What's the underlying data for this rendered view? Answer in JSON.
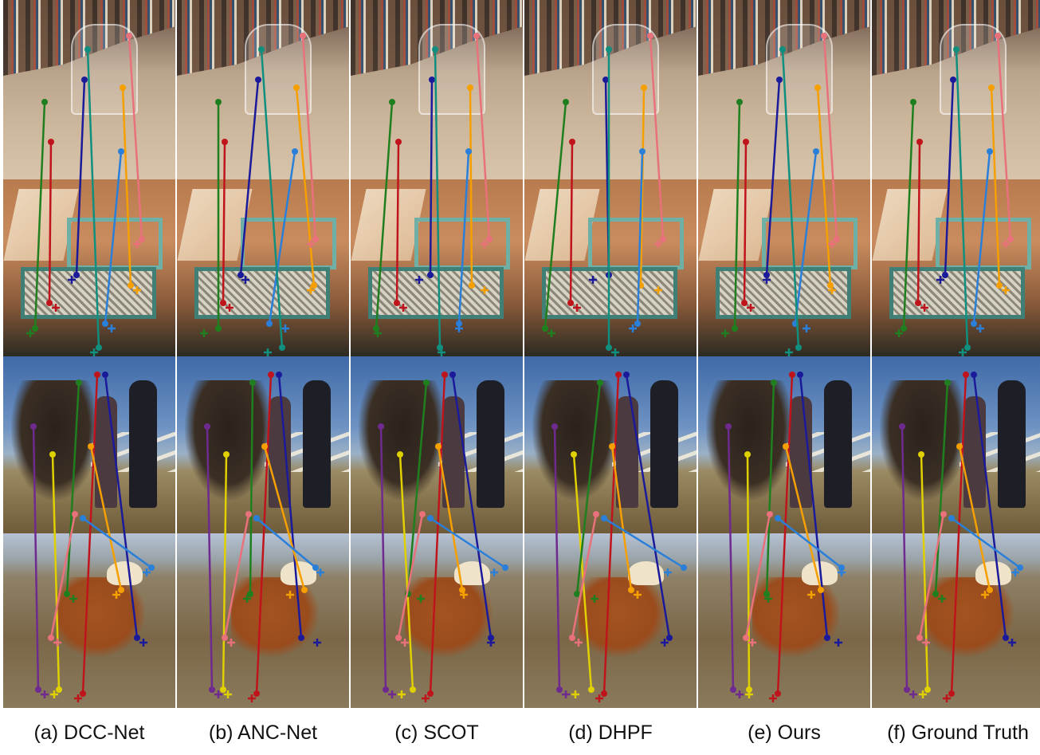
{
  "figure": {
    "columns": [
      {
        "id": "dcc-net",
        "caption": "(a) DCC-Net"
      },
      {
        "id": "anc-net",
        "caption": "(b) ANC-Net"
      },
      {
        "id": "scot",
        "caption": "(c) SCOT"
      },
      {
        "id": "dhpf",
        "caption": "(d) DHPF"
      },
      {
        "id": "ours",
        "caption": "(e) Ours"
      },
      {
        "id": "ground-truth",
        "caption": "(f) Ground Truth"
      }
    ],
    "keypoint_colors": [
      "#1f7f1f",
      "#c0141c",
      "#1a1a9a",
      "#f5a000",
      "#e8717b",
      "#2a7fd9",
      "#108f7f",
      "#6f2a8f",
      "#e0d000"
    ]
  }
}
